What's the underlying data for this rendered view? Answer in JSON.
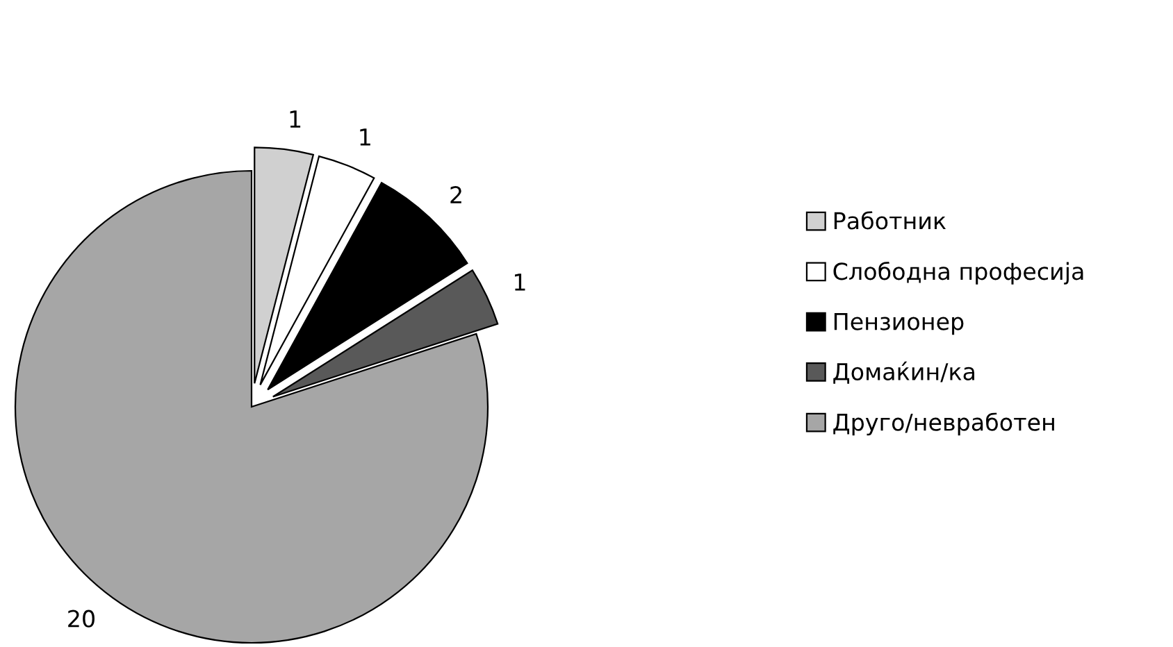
{
  "chart_data": {
    "type": "pie",
    "categories": [
      "Работник",
      "Слободна професија",
      "Пензионер",
      "Домаќин/ка",
      "Друго/невработен"
    ],
    "values": [
      1,
      1,
      2,
      1,
      20
    ],
    "colors": [
      "#d0d0d0",
      "#ffffff",
      "#000000",
      "#595959",
      "#a6a6a6"
    ],
    "data_labels": true,
    "legend": "right"
  }
}
